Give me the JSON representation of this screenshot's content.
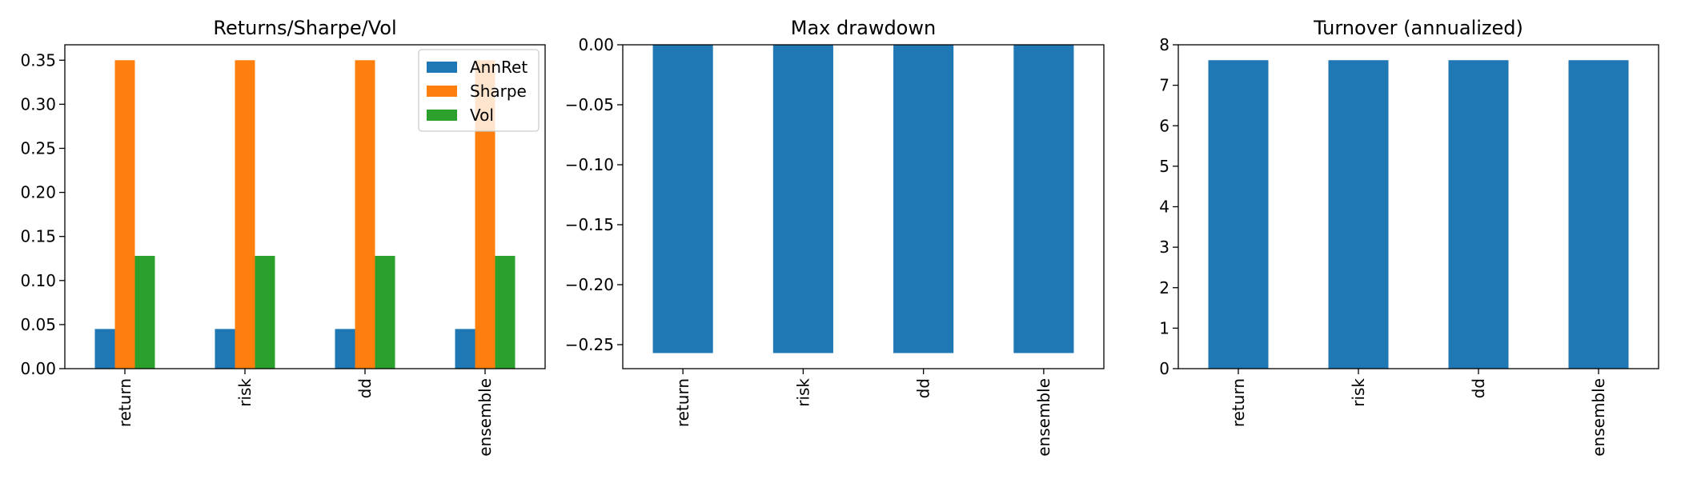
{
  "chart_data": [
    {
      "type": "bar",
      "title": "Returns/Sharpe/Vol",
      "xlabel": "",
      "ylabel": "",
      "categories": [
        "return",
        "risk",
        "dd",
        "ensemble"
      ],
      "series": [
        {
          "name": "AnnRet",
          "values": [
            0.045,
            0.045,
            0.045,
            0.045
          ],
          "color": "#1f77b4"
        },
        {
          "name": "Sharpe",
          "values": [
            0.35,
            0.35,
            0.35,
            0.35
          ],
          "color": "#ff7f0e"
        },
        {
          "name": "Vol",
          "values": [
            0.128,
            0.128,
            0.128,
            0.128
          ],
          "color": "#2ca02c"
        }
      ],
      "ylim": [
        0,
        0.3675
      ],
      "yticks": [
        "0.00",
        "0.05",
        "0.10",
        "0.15",
        "0.20",
        "0.25",
        "0.30",
        "0.35"
      ],
      "ytick_values": [
        0,
        0.05,
        0.1,
        0.15,
        0.2,
        0.25,
        0.3,
        0.35
      ],
      "legend": "upper right",
      "grid": false
    },
    {
      "type": "bar",
      "title": "Max drawdown",
      "xlabel": "",
      "ylabel": "",
      "categories": [
        "return",
        "risk",
        "dd",
        "ensemble"
      ],
      "series": [
        {
          "values": [
            -0.257,
            -0.257,
            -0.257,
            -0.257
          ],
          "color": "#1f77b4"
        }
      ],
      "ylim": [
        -0.27,
        0
      ],
      "yticks": [
        "0.00",
        "−0.05",
        "−0.10",
        "−0.15",
        "−0.20",
        "−0.25"
      ],
      "ytick_values": [
        0,
        -0.05,
        -0.1,
        -0.15,
        -0.2,
        -0.25
      ],
      "grid": false
    },
    {
      "type": "bar",
      "title": "Turnover (annualized)",
      "xlabel": "",
      "ylabel": "",
      "categories": [
        "return",
        "risk",
        "dd",
        "ensemble"
      ],
      "series": [
        {
          "values": [
            7.62,
            7.62,
            7.62,
            7.62
          ],
          "color": "#1f77b4"
        }
      ],
      "ylim": [
        0,
        8
      ],
      "yticks": [
        "0",
        "1",
        "2",
        "3",
        "4",
        "5",
        "6",
        "7",
        "8"
      ],
      "ytick_values": [
        0,
        1,
        2,
        3,
        4,
        5,
        6,
        7,
        8
      ],
      "grid": false
    }
  ]
}
